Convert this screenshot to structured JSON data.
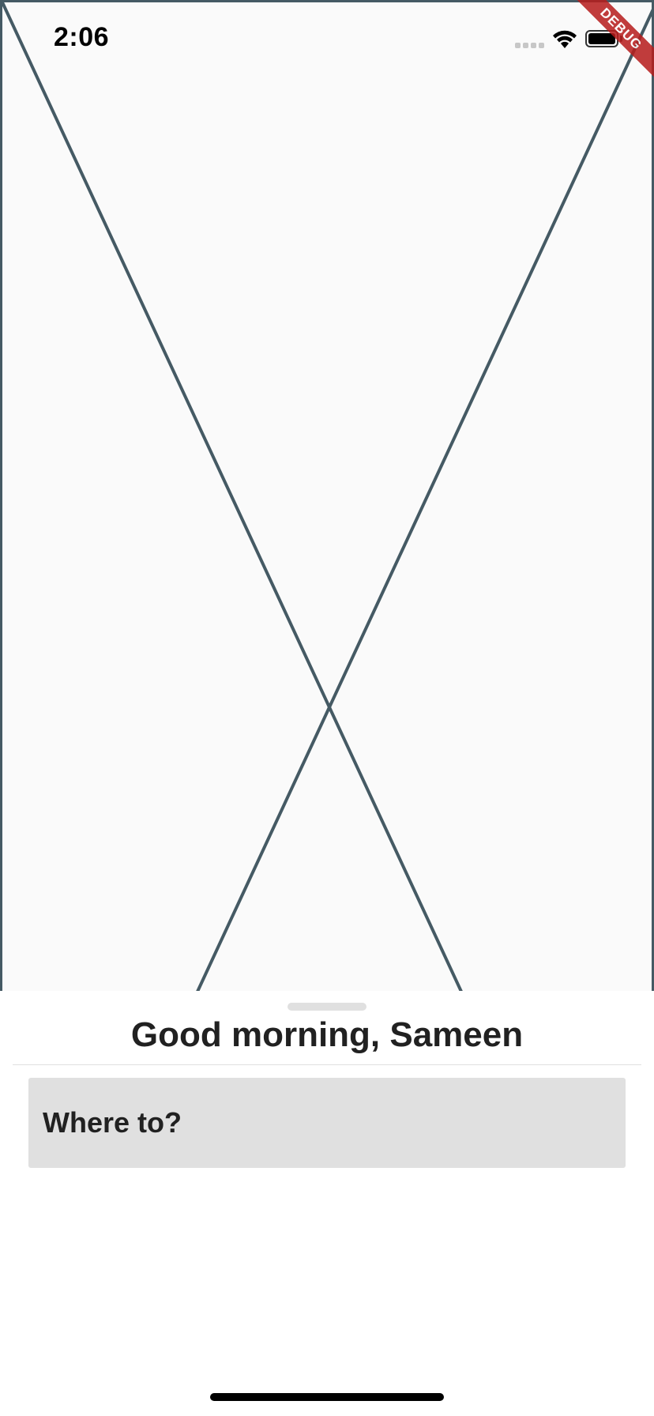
{
  "status_bar": {
    "time": "2:06"
  },
  "debug_banner": {
    "label": "DEBUG"
  },
  "map": {
    "placeholder_color": "#455a64",
    "background": "#fafafa"
  },
  "sheet": {
    "greeting": "Good morning, Sameen",
    "search": {
      "label": "Where to?"
    }
  },
  "icons": {
    "signal": "cellular-signal-icon",
    "wifi": "wifi-icon",
    "battery": "battery-icon"
  }
}
